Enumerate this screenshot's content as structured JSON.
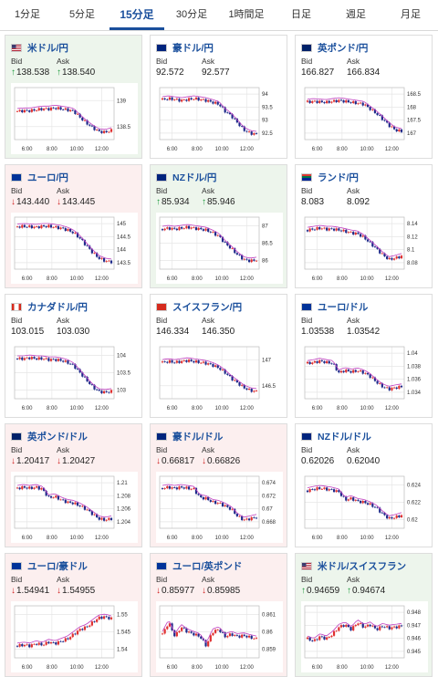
{
  "tabs": [
    {
      "label": "1分足",
      "active": false
    },
    {
      "label": "5分足",
      "active": false
    },
    {
      "label": "15分足",
      "active": true
    },
    {
      "label": "30分足",
      "active": false
    },
    {
      "label": "1時間足",
      "active": false
    },
    {
      "label": "日足",
      "active": false
    },
    {
      "label": "週足",
      "active": false
    },
    {
      "label": "月足",
      "active": false
    }
  ],
  "labels": {
    "bid": "Bid",
    "ask": "Ask"
  },
  "colors": {
    "up": "#1a9a3a",
    "down": "#d02020",
    "candle_up": "#e03030",
    "candle_down": "#1e2a8a",
    "ma": "#c040c0",
    "ma2": "#2aa0c0"
  },
  "cards": [
    {
      "name": "米ドル/円",
      "flag": "us-flag",
      "direction": "up",
      "bid": "138.538",
      "ask": "138.540",
      "chart": {
        "x_ticks": [
          "6:00",
          "8:00",
          "10:00",
          "12:00"
        ],
        "y_ticks": [
          "139",
          "138.5"
        ],
        "trend": [
          0.55,
          0.56,
          0.56,
          0.58,
          0.6,
          0.6,
          0.62,
          0.6,
          0.58,
          0.55,
          0.42,
          0.3,
          0.2,
          0.12,
          0.1,
          0.14
        ]
      }
    },
    {
      "name": "豪ドル/円",
      "flag": "au-flag",
      "direction": "flat",
      "bid": "92.572",
      "ask": "92.577",
      "chart": {
        "x_ticks": [
          "6:00",
          "8:00",
          "10:00",
          "12:00"
        ],
        "y_ticks": [
          "94",
          "93.5",
          "93",
          "92.5"
        ],
        "trend": [
          0.8,
          0.82,
          0.8,
          0.78,
          0.8,
          0.82,
          0.8,
          0.78,
          0.74,
          0.7,
          0.55,
          0.45,
          0.3,
          0.15,
          0.08,
          0.06
        ]
      }
    },
    {
      "name": "英ポンド/円",
      "flag": "gb-flag",
      "direction": "flat",
      "bid": "166.827",
      "ask": "166.834",
      "chart": {
        "x_ticks": [
          "6:00",
          "8:00",
          "10:00",
          "12:00"
        ],
        "y_ticks": [
          "168.5",
          "168",
          "167.5",
          "167"
        ],
        "trend": [
          0.75,
          0.76,
          0.75,
          0.74,
          0.76,
          0.78,
          0.76,
          0.74,
          0.72,
          0.7,
          0.6,
          0.5,
          0.38,
          0.25,
          0.15,
          0.12
        ]
      }
    },
    {
      "name": "ユーロ/円",
      "flag": "eu-flag",
      "direction": "down",
      "bid": "143.440",
      "ask": "143.445",
      "chart": {
        "x_ticks": [
          "6:00",
          "8:00",
          "10:00",
          "12:00"
        ],
        "y_ticks": [
          "145",
          "144.5",
          "144",
          "143.5"
        ],
        "trend": [
          0.85,
          0.86,
          0.85,
          0.84,
          0.86,
          0.86,
          0.84,
          0.82,
          0.78,
          0.72,
          0.6,
          0.45,
          0.3,
          0.18,
          0.12,
          0.1
        ]
      }
    },
    {
      "name": "NZドル/円",
      "flag": "nz-flag",
      "direction": "up",
      "bid": "85.934",
      "ask": "85.946",
      "chart": {
        "x_ticks": [
          "6:00",
          "8:00",
          "10:00",
          "12:00"
        ],
        "y_ticks": [
          "87",
          "86.5",
          "86"
        ],
        "trend": [
          0.8,
          0.82,
          0.8,
          0.82,
          0.84,
          0.82,
          0.8,
          0.78,
          0.72,
          0.65,
          0.5,
          0.38,
          0.25,
          0.15,
          0.12,
          0.14
        ]
      }
    },
    {
      "name": "ランド/円",
      "flag": "za-flag",
      "direction": "flat",
      "bid": "8.083",
      "ask": "8.092",
      "chart": {
        "x_ticks": [
          "6:00",
          "8:00",
          "10:00",
          "12:00"
        ],
        "y_ticks": [
          "8.14",
          "8.12",
          "8.1",
          "8.08"
        ],
        "trend": [
          0.78,
          0.8,
          0.82,
          0.8,
          0.8,
          0.78,
          0.75,
          0.72,
          0.7,
          0.62,
          0.5,
          0.38,
          0.25,
          0.15,
          0.18,
          0.22
        ]
      }
    },
    {
      "name": "カナダドル/円",
      "flag": "ca-flag",
      "direction": "flat",
      "bid": "103.015",
      "ask": "103.030",
      "chart": {
        "x_ticks": [
          "6:00",
          "8:00",
          "10:00",
          "12:00"
        ],
        "y_ticks": [
          "104",
          "103.5",
          "103"
        ],
        "trend": [
          0.8,
          0.8,
          0.82,
          0.8,
          0.8,
          0.78,
          0.78,
          0.76,
          0.72,
          0.65,
          0.5,
          0.35,
          0.2,
          0.1,
          0.08,
          0.1
        ]
      }
    },
    {
      "name": "スイスフラン/円",
      "flag": "ch-flag",
      "direction": "flat",
      "bid": "146.334",
      "ask": "146.350",
      "chart": {
        "x_ticks": [
          "6:00",
          "8:00",
          "10:00",
          "12:00"
        ],
        "y_ticks": [
          "147",
          "146.5"
        ],
        "trend": [
          0.72,
          0.74,
          0.72,
          0.74,
          0.76,
          0.74,
          0.72,
          0.7,
          0.66,
          0.6,
          0.5,
          0.38,
          0.28,
          0.18,
          0.12,
          0.1
        ]
      }
    },
    {
      "name": "ユーロ/ドル",
      "flag": "eu-flag",
      "direction": "flat",
      "bid": "1.03538",
      "ask": "1.03542",
      "chart": {
        "x_ticks": [
          "6:00",
          "8:00",
          "10:00",
          "12:00"
        ],
        "y_ticks": [
          "1.04",
          "1.038",
          "1.036",
          "1.034"
        ],
        "trend": [
          0.7,
          0.72,
          0.75,
          0.72,
          0.7,
          0.5,
          0.55,
          0.52,
          0.54,
          0.5,
          0.42,
          0.3,
          0.2,
          0.15,
          0.18,
          0.2
        ]
      }
    },
    {
      "name": "英ポンド/ドル",
      "flag": "gb-flag",
      "direction": "down",
      "bid": "1.20417",
      "ask": "1.20427",
      "chart": {
        "x_ticks": [
          "6:00",
          "8:00",
          "10:00",
          "12:00"
        ],
        "y_ticks": [
          "1.21",
          "1.208",
          "1.206",
          "1.204"
        ],
        "trend": [
          0.8,
          0.82,
          0.8,
          0.82,
          0.78,
          0.6,
          0.62,
          0.55,
          0.5,
          0.48,
          0.42,
          0.35,
          0.25,
          0.15,
          0.12,
          0.15
        ]
      }
    },
    {
      "name": "豪ドル/ドル",
      "flag": "au-flag",
      "direction": "down",
      "bid": "0.66817",
      "ask": "0.66826",
      "chart": {
        "x_ticks": [
          "6:00",
          "8:00",
          "10:00",
          "12:00"
        ],
        "y_ticks": [
          "0.674",
          "0.672",
          "0.67",
          "0.668"
        ],
        "trend": [
          0.8,
          0.82,
          0.8,
          0.82,
          0.8,
          0.78,
          0.6,
          0.58,
          0.5,
          0.48,
          0.42,
          0.35,
          0.2,
          0.12,
          0.15,
          0.18
        ]
      }
    },
    {
      "name": "NZドル/ドル",
      "flag": "nz-flag",
      "direction": "flat",
      "bid": "0.62026",
      "ask": "0.62040",
      "chart": {
        "x_ticks": [
          "6:00",
          "8:00",
          "10:00",
          "12:00"
        ],
        "y_ticks": [
          "0.624",
          "0.622",
          "0.62"
        ],
        "trend": [
          0.75,
          0.78,
          0.8,
          0.78,
          0.76,
          0.72,
          0.55,
          0.58,
          0.52,
          0.5,
          0.45,
          0.38,
          0.25,
          0.15,
          0.18,
          0.22
        ]
      }
    },
    {
      "name": "ユーロ/豪ドル",
      "flag": "eu-flag",
      "direction": "down",
      "bid": "1.54941",
      "ask": "1.54955",
      "chart": {
        "x_ticks": [
          "6:00",
          "8:00",
          "10:00",
          "12:00"
        ],
        "y_ticks": [
          "1.55",
          "1.545",
          "1.54"
        ],
        "trend": [
          0.2,
          0.22,
          0.2,
          0.25,
          0.22,
          0.28,
          0.25,
          0.3,
          0.35,
          0.45,
          0.55,
          0.6,
          0.7,
          0.8,
          0.82,
          0.78
        ]
      }
    },
    {
      "name": "ユーロ/英ポンド",
      "flag": "eu-flag",
      "direction": "down",
      "bid": "0.85977",
      "ask": "0.85985",
      "chart": {
        "x_ticks": [
          "6:00",
          "8:00",
          "10:00",
          "12:00"
        ],
        "y_ticks": [
          "0.861",
          "0.86",
          "0.859"
        ],
        "trend": [
          0.45,
          0.7,
          0.4,
          0.6,
          0.5,
          0.45,
          0.4,
          0.2,
          0.5,
          0.55,
          0.4,
          0.45,
          0.4,
          0.42,
          0.38,
          0.35
        ]
      }
    },
    {
      "name": "米ドル/スイスフラン",
      "flag": "us-flag",
      "direction": "up",
      "bid": "0.94659",
      "ask": "0.94674",
      "chart": {
        "x_ticks": [
          "6:00",
          "8:00",
          "10:00",
          "12:00"
        ],
        "y_ticks": [
          "0.948",
          "0.947",
          "0.946",
          "0.945"
        ],
        "trend": [
          0.35,
          0.3,
          0.4,
          0.35,
          0.45,
          0.6,
          0.65,
          0.55,
          0.7,
          0.6,
          0.65,
          0.55,
          0.62,
          0.58,
          0.6,
          0.62
        ]
      }
    }
  ]
}
